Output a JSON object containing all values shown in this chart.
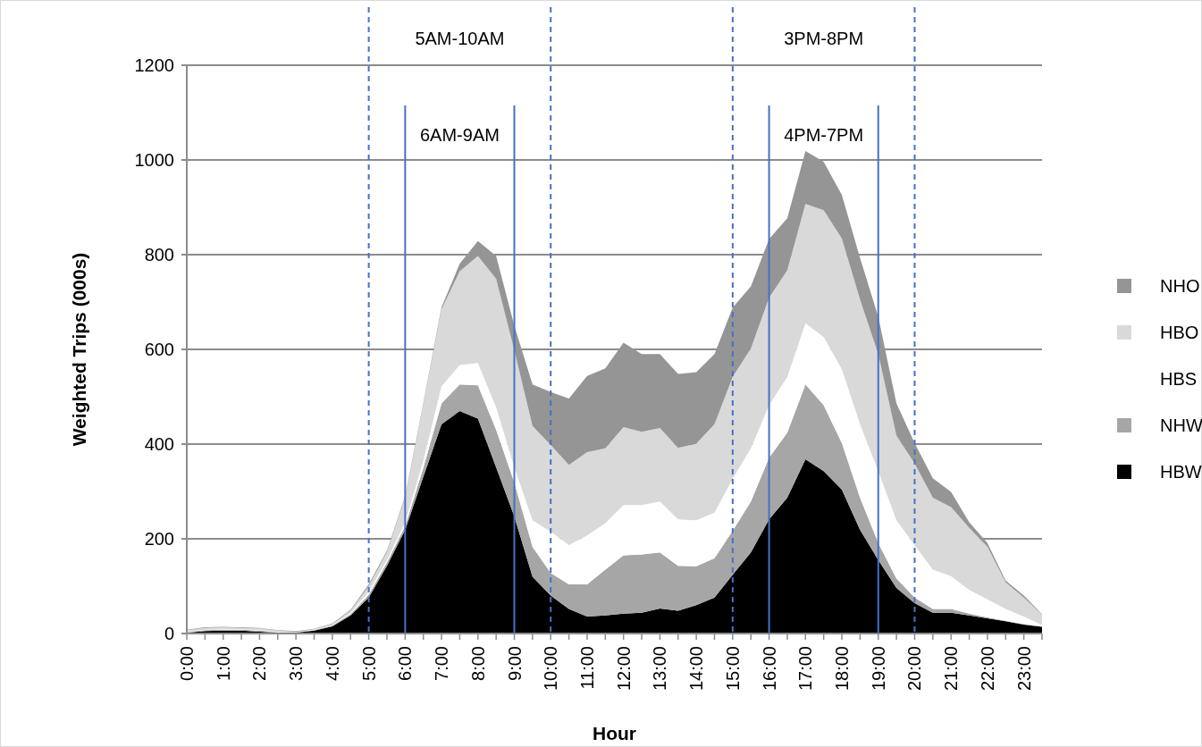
{
  "chart_data": {
    "type": "area",
    "stacked": true,
    "xlabel": "Hour",
    "ylabel": "Weighted Trips (000s)",
    "categories": [
      "0:00",
      null,
      "1:00",
      null,
      "2:00",
      null,
      "3:00",
      null,
      "4:00",
      null,
      "5:00",
      null,
      "6:00",
      null,
      "7:00",
      null,
      "8:00",
      null,
      "9:00",
      null,
      "10:00",
      null,
      "11:00",
      null,
      "12:00",
      null,
      "13:00",
      null,
      "14:00",
      null,
      "15:00",
      null,
      "16:00",
      null,
      "17:00",
      null,
      "18:00",
      null,
      "19:00",
      null,
      "20:00",
      null,
      "21:00",
      null,
      "22:00",
      null,
      "23:00",
      null
    ],
    "series": [
      {
        "name": "HBW",
        "color": "#000000",
        "values": [
          2,
          5,
          6,
          6,
          4,
          2,
          2,
          6,
          15,
          38,
          76,
          143,
          219,
          331,
          442,
          470,
          454,
          351,
          247,
          120,
          80,
          52,
          36,
          38,
          42,
          44,
          53,
          48,
          60,
          76,
          124,
          171,
          241,
          287,
          368,
          343,
          304,
          219,
          155,
          96,
          64,
          44,
          44,
          38,
          32,
          26,
          19,
          14
        ]
      },
      {
        "name": "NHW",
        "color": "#a6a6a6",
        "values": [
          1,
          2,
          2,
          2,
          2,
          1,
          1,
          1,
          2,
          3,
          6,
          7,
          8,
          19,
          44,
          56,
          70,
          79,
          72,
          63,
          48,
          52,
          68,
          97,
          123,
          123,
          118,
          95,
          82,
          83,
          93,
          108,
          130,
          137,
          158,
          139,
          98,
          68,
          36,
          20,
          12,
          8,
          8,
          4,
          2,
          1,
          1,
          1
        ]
      },
      {
        "name": "HBS",
        "color": "#ffffff",
        "values": [
          1,
          1,
          1,
          1,
          1,
          1,
          0,
          1,
          1,
          2,
          6,
          5,
          8,
          15,
          36,
          41,
          47,
          48,
          32,
          56,
          87,
          83,
          103,
          98,
          106,
          104,
          108,
          98,
          97,
          96,
          110,
          112,
          111,
          118,
          129,
          144,
          156,
          155,
          152,
          123,
          111,
          83,
          69,
          50,
          38,
          25,
          16,
          3
        ]
      },
      {
        "name": "HBO",
        "color": "#d9d9d9",
        "values": [
          3,
          4,
          4,
          3,
          4,
          2,
          1,
          1,
          2,
          5,
          12,
          17,
          52,
          119,
          163,
          198,
          226,
          271,
          247,
          199,
          183,
          169,
          176,
          158,
          165,
          155,
          155,
          151,
          162,
          187,
          215,
          211,
          227,
          225,
          252,
          268,
          276,
          263,
          247,
          179,
          172,
          152,
          146,
          131,
          111,
          56,
          40,
          22
        ]
      },
      {
        "name": "NHO",
        "color": "#959595",
        "values": [
          1,
          1,
          1,
          1,
          1,
          1,
          1,
          1,
          1,
          2,
          4,
          3,
          3,
          3,
          4,
          16,
          32,
          48,
          52,
          88,
          112,
          140,
          161,
          169,
          178,
          164,
          156,
          156,
          151,
          148,
          146,
          131,
          124,
          110,
          112,
          102,
          92,
          88,
          79,
          68,
          43,
          41,
          32,
          12,
          8,
          4,
          4,
          1
        ]
      }
    ],
    "ylim": [
      0,
      1200
    ],
    "yticks": [
      0,
      200,
      400,
      600,
      800,
      1000,
      1200
    ],
    "grid": "y",
    "legend": "right",
    "ref_lines": [
      {
        "axis": "x",
        "value": "5:00",
        "color": "#4472c4",
        "line_style": "dashed"
      },
      {
        "axis": "x",
        "value": "10:00",
        "color": "#4472c4",
        "line_style": "dashed"
      },
      {
        "axis": "x",
        "value": "6:00",
        "color": "#4472c4",
        "line_style": "solid"
      },
      {
        "axis": "x",
        "value": "9:00",
        "color": "#4472c4",
        "line_style": "solid"
      },
      {
        "axis": "x",
        "value": "15:00",
        "color": "#4472c4",
        "line_style": "dashed"
      },
      {
        "axis": "x",
        "value": "20:00",
        "color": "#4472c4",
        "line_style": "dashed"
      },
      {
        "axis": "x",
        "value": "16:00",
        "color": "#4472c4",
        "line_style": "solid"
      },
      {
        "axis": "x",
        "value": "19:00",
        "color": "#4472c4",
        "line_style": "solid"
      }
    ],
    "annotations": [
      "5AM-10AM",
      "6AM-9AM",
      "3PM-8PM",
      "4PM-7PM"
    ]
  }
}
